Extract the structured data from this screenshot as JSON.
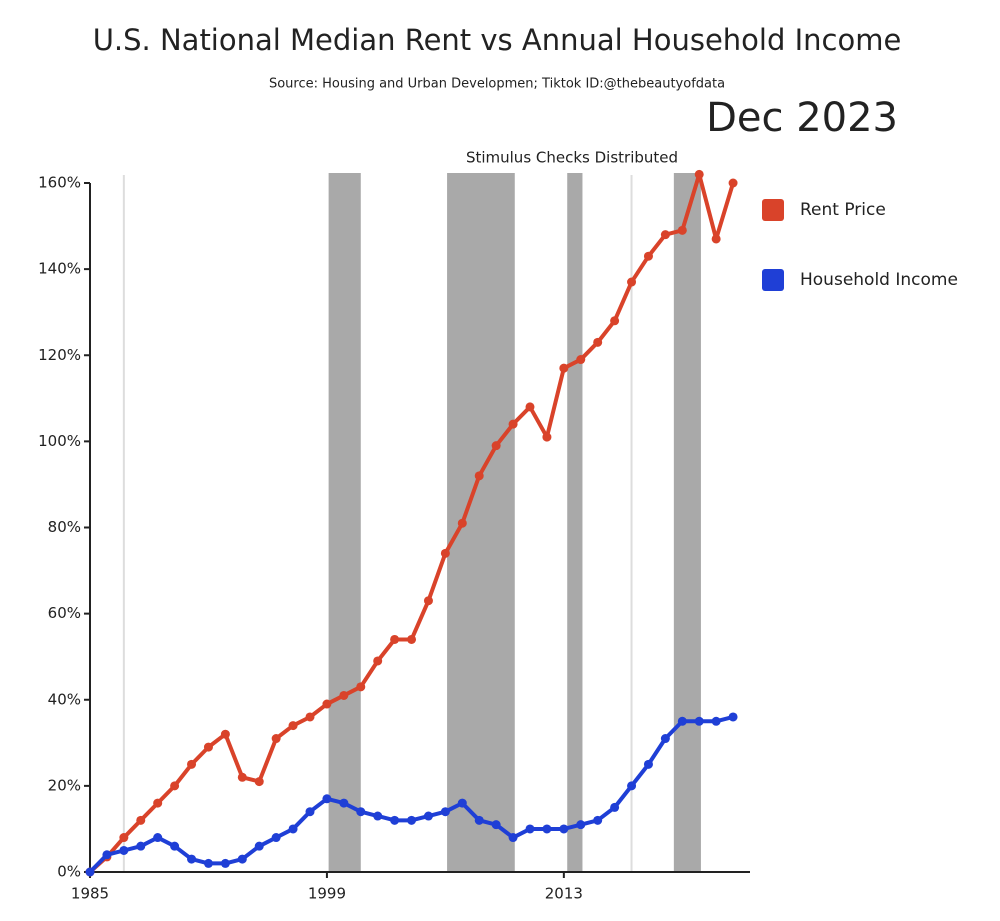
{
  "chart_data": {
    "type": "line",
    "title": "U.S. National Median Rent vs Annual Household Income",
    "subtitle": "Source: Housing and Urban Developmen;  Tiktok ID:@thebeautyofdata",
    "date_label": "Dec 2023",
    "annotation": "Stimulus Checks Distributed",
    "x": [
      1985,
      1986,
      1987,
      1988,
      1989,
      1990,
      1991,
      1992,
      1993,
      1994,
      1995,
      1996,
      1997,
      1998,
      1999,
      2000,
      2001,
      2002,
      2003,
      2004,
      2005,
      2006,
      2007,
      2008,
      2009,
      2010,
      2011,
      2012,
      2013,
      2014,
      2015,
      2016,
      2017,
      2018,
      2019,
      2020,
      2021,
      2022,
      2023
    ],
    "series": [
      {
        "name": "Rent Price",
        "color": "#d9432a",
        "values": [
          0,
          3.5,
          8,
          12,
          16,
          20,
          25,
          29,
          32,
          22,
          21,
          31,
          34,
          36,
          39,
          41,
          43,
          49,
          54,
          54,
          63,
          74,
          81,
          92,
          99,
          104,
          108,
          101,
          117,
          119,
          123,
          128,
          137,
          143,
          148,
          149,
          162,
          147,
          160
        ]
      },
      {
        "name": "Household Income",
        "color": "#1f3fd6",
        "values": [
          0,
          4,
          5,
          6,
          8,
          6,
          3,
          2,
          2,
          3,
          6,
          8,
          10,
          14,
          17,
          16,
          14,
          13,
          12,
          12,
          13,
          14,
          16,
          12,
          11,
          8,
          10,
          10,
          10,
          11,
          12,
          15,
          20,
          25,
          31,
          35,
          35,
          35,
          36
        ]
      }
    ],
    "shaded_regions": [
      [
        1999.1,
        2001.0
      ],
      [
        2006.1,
        2010.1
      ],
      [
        2013.2,
        2014.1
      ],
      [
        2019.5,
        2021.1
      ]
    ],
    "shade_color": "#a9a9a9",
    "reference_lines": [
      1987,
      2017
    ],
    "xlim": [
      1985,
      2024
    ],
    "xticks": [
      1985,
      1999,
      2013
    ],
    "ylim": [
      0,
      160
    ],
    "yticks": [
      {
        "value": 0,
        "label": "0%"
      },
      {
        "value": 20,
        "label": "20%"
      },
      {
        "value": 40,
        "label": "40%"
      },
      {
        "value": 60,
        "label": "60%"
      },
      {
        "value": 80,
        "label": "80%"
      },
      {
        "value": 100,
        "label": "100%"
      },
      {
        "value": 120,
        "label": "120%"
      },
      {
        "value": 140,
        "label": "140%"
      },
      {
        "value": 160,
        "label": "160%"
      }
    ],
    "legend": "right"
  }
}
